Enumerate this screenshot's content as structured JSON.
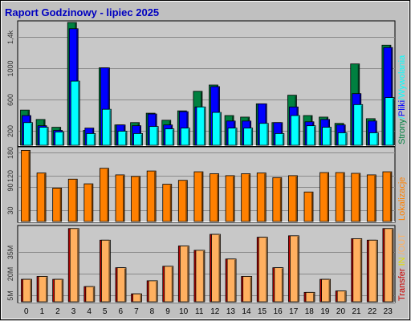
{
  "title": "Raport Godzinowy -  lipiec 2025",
  "colors": {
    "page_bg": "#C0C0C0",
    "plot_bg": "#C8C8C8",
    "grid": "#8A8A8A",
    "title": "#0000C0",
    "strony": "#008040",
    "pliki": "#0000FF",
    "wywolania": "#00FFFF",
    "lokalizacje": "#FF8000",
    "transfer": "#CC0000",
    "transfer_in": "#E0E000",
    "transfer_out": "#FFB060"
  },
  "chart_data": [
    {
      "id": "requests",
      "type": "bar",
      "categories": [
        "0",
        "1",
        "2",
        "3",
        "4",
        "5",
        "6",
        "7",
        "8",
        "9",
        "10",
        "11",
        "12",
        "13",
        "14",
        "15",
        "16",
        "17",
        "18",
        "19",
        "20",
        "21",
        "22",
        "23"
      ],
      "ylim": [
        0,
        1580
      ],
      "yticks": [
        200,
        600,
        1000,
        1400
      ],
      "yticklabels": [
        "200",
        "600",
        "1000",
        "1,4k"
      ],
      "grid": true,
      "legend": "right",
      "side_label": [
        {
          "text": "Strony",
          "color_key": "strony"
        },
        {
          "text": "/",
          "color_key": "wywolania"
        },
        {
          "text": "Pliki",
          "color_key": "pliki"
        },
        {
          "text": "/",
          "color_key": "wywolania"
        },
        {
          "text": "Wywolania",
          "color_key": "wywolania"
        }
      ],
      "series": [
        {
          "name": "Strony",
          "color_key": "strony",
          "values": [
            460,
            340,
            240,
            1580,
            200,
            1000,
            270,
            300,
            420,
            330,
            450,
            700,
            780,
            390,
            370,
            540,
            300,
            650,
            390,
            370,
            290,
            1050,
            350,
            1290
          ]
        },
        {
          "name": "Pliki",
          "color_key": "pliki",
          "values": [
            390,
            260,
            200,
            1500,
            230,
            1000,
            270,
            260,
            410,
            270,
            440,
            500,
            760,
            320,
            320,
            540,
            300,
            500,
            310,
            340,
            270,
            670,
            320,
            1260
          ]
        },
        {
          "name": "Wywolania",
          "color_key": "wywolania",
          "values": [
            300,
            240,
            180,
            830,
            160,
            470,
            190,
            160,
            250,
            220,
            230,
            500,
            430,
            230,
            230,
            290,
            160,
            390,
            260,
            240,
            170,
            530,
            170,
            620
          ]
        }
      ]
    },
    {
      "id": "locations",
      "type": "bar",
      "categories": [
        "0",
        "1",
        "2",
        "3",
        "4",
        "5",
        "6",
        "7",
        "8",
        "9",
        "10",
        "11",
        "12",
        "13",
        "14",
        "15",
        "16",
        "17",
        "18",
        "19",
        "20",
        "21",
        "22",
        "23"
      ],
      "ylim": [
        0,
        190
      ],
      "yticks": [
        30,
        90,
        120,
        180
      ],
      "yticklabels": [
        "30",
        "90",
        "120",
        "180"
      ],
      "grid": true,
      "legend": "right",
      "side_label": [
        {
          "text": "Lokalizacje",
          "color_key": "lokalizacje"
        }
      ],
      "series": [
        {
          "name": "Lokalizacje",
          "color_key": "lokalizacje",
          "values": [
            185,
            127,
            88,
            111,
            99,
            139,
            122,
            118,
            132,
            98,
            108,
            130,
            125,
            120,
            125,
            127,
            115,
            120,
            78,
            128,
            128,
            126,
            122,
            130
          ]
        }
      ]
    },
    {
      "id": "transfer",
      "type": "bar",
      "categories": [
        "0",
        "1",
        "2",
        "3",
        "4",
        "5",
        "6",
        "7",
        "8",
        "9",
        "10",
        "11",
        "12",
        "13",
        "14",
        "15",
        "16",
        "17",
        "18",
        "19",
        "20",
        "21",
        "22",
        "23"
      ],
      "ylim": [
        0,
        52
      ],
      "yticks": [
        5,
        20,
        35
      ],
      "yticklabels": [
        "5M",
        "20M",
        "35M"
      ],
      "grid": true,
      "legend": "right",
      "side_label": [
        {
          "text": "Transfer",
          "color_key": "transfer"
        },
        {
          "text": " IN ",
          "color_key": "transfer_in"
        },
        {
          "text": "/",
          "color_key": "transfer_out"
        },
        {
          "text": "OUT",
          "color_key": "transfer_out"
        }
      ],
      "series": [
        {
          "name": "Transfer",
          "color_key": "transfer",
          "values": [
            16,
            18,
            16,
            51,
            11,
            43,
            24,
            6,
            15,
            25,
            39,
            36,
            47,
            30,
            18,
            45,
            24,
            46,
            7,
            16,
            8,
            44,
            43,
            51
          ]
        },
        {
          "name": "OUT",
          "color_key": "transfer_out",
          "values": [
            16,
            18,
            16,
            51,
            11,
            43,
            24,
            6,
            15,
            25,
            39,
            36,
            47,
            30,
            18,
            45,
            24,
            46,
            7,
            16,
            8,
            44,
            43,
            51
          ]
        }
      ]
    }
  ]
}
